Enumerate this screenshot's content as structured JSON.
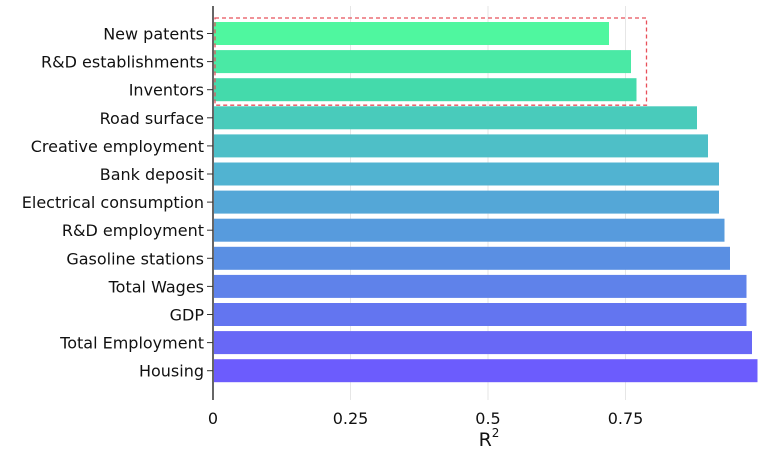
{
  "chart_data": {
    "type": "bar",
    "orientation": "horizontal",
    "categories": [
      "New patents",
      "R&D establishments",
      "Inventors",
      "Road surface",
      "Creative employment",
      "Bank deposit",
      "Electrical consumption",
      "R&D employment",
      "Gasoline stations",
      "Total Wages",
      "GDP",
      "Total Employment",
      "Housing"
    ],
    "values": [
      0.72,
      0.76,
      0.77,
      0.88,
      0.9,
      0.92,
      0.92,
      0.93,
      0.94,
      0.97,
      0.97,
      0.98,
      0.99
    ],
    "colors": [
      "#4ff79f",
      "#4ae9a5",
      "#44daab",
      "#49cbbb",
      "#4ebfc7",
      "#51b3d1",
      "#54a7d7",
      "#579bdd",
      "#5a8fe3",
      "#5f82ea",
      "#6375f0",
      "#6868f6",
      "#6c5cfd"
    ],
    "highlight": {
      "first_index": 0,
      "last_index": 2,
      "color": "#e8505b",
      "style": "dashed"
    },
    "xlim": [
      0,
      1
    ],
    "xticks": [
      0,
      0.25,
      0.5,
      0.75
    ],
    "xtick_labels": [
      "0",
      "0.25",
      "0.5",
      "0.75"
    ],
    "xlabel": "R",
    "xlabel_superscript": "2",
    "grid": "vertical"
  }
}
